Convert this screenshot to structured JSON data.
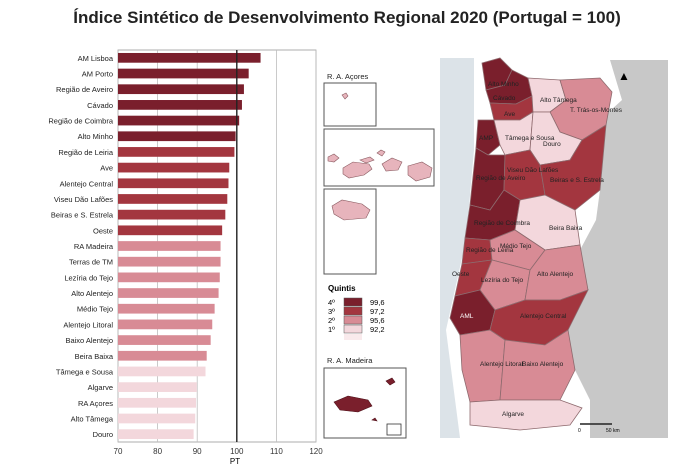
{
  "title": "Índice Sintético de Desenvolvimento Regional 2020 (Portugal = 100)",
  "colors": {
    "q4": "#7a1f2c",
    "q3": "#a3363f",
    "q2": "#d88b95",
    "q1": "#f3d7dc",
    "grid": "#bdbdbd"
  },
  "chart_data": {
    "type": "bar",
    "orientation": "horizontal",
    "categories": [
      "AM Lisboa",
      "AM Porto",
      "Região de Aveiro",
      "Cávado",
      "Região de Coimbra",
      "Alto Minho",
      "Região de Leiria",
      "Ave",
      "Alentejo Central",
      "Viseu Dão Lafões",
      "Beiras e S. Estrela",
      "Oeste",
      "RA Madeira",
      "Terras de TM",
      "Lezíria do Tejo",
      "Alto Alentejo",
      "Médio Tejo",
      "Alentejo Litoral",
      "Baixo Alentejo",
      "Beira Baixa",
      "Tâmega e Sousa",
      "Algarve",
      "RA Açores",
      "Alto Tâmega",
      "Douro"
    ],
    "values": [
      106,
      103,
      101.8,
      101.3,
      100.6,
      99.7,
      99.4,
      98.1,
      97.9,
      97.6,
      97.1,
      96.3,
      95.9,
      95.9,
      95.7,
      95.4,
      94.4,
      93.8,
      93.4,
      92.4,
      92.1,
      89.9,
      89.7,
      89.5,
      89.1
    ],
    "quintile": [
      4,
      4,
      4,
      4,
      4,
      4,
      3,
      3,
      3,
      3,
      3,
      3,
      2,
      2,
      2,
      2,
      2,
      2,
      2,
      2,
      1,
      1,
      1,
      1,
      1
    ],
    "xlim": [
      70,
      120
    ],
    "xticks": [
      "70",
      "80",
      "90",
      "100",
      "110",
      "120"
    ],
    "xlabel": "PT",
    "reference_line": 100,
    "grid": true
  },
  "legend": {
    "title": "Quintis",
    "items": [
      {
        "label": "4º",
        "value": "99,6"
      },
      {
        "label": "3º",
        "value": "97,2"
      },
      {
        "label": "2º",
        "value": "95,6"
      },
      {
        "label": "1º",
        "value": "92,2"
      }
    ]
  },
  "insets": {
    "azores_title": "R. A. Açores",
    "madeira_title": "R. A. Madeira"
  },
  "map": {
    "north_arrow": "▲",
    "scale_zero": "0",
    "scale_end": "50 km",
    "labels": [
      "Alto Minho",
      "Cávado",
      "Ave",
      "Alto Tâmega",
      "T. Trás-os-Montes",
      "AMP",
      "Tâmega e Sousa",
      "Douro",
      "Região de Aveiro",
      "Viseu Dão Lafões",
      "Beiras e S. Estrela",
      "Região de Coimbra",
      "Região de Leiria",
      "Beira Baixa",
      "Médio Tejo",
      "Oeste",
      "Lezíria do Tejo",
      "Alto Alentejo",
      "AML",
      "Alentejo Central",
      "Alentejo Litoral",
      "Baixo Alentejo",
      "Algarve"
    ]
  }
}
